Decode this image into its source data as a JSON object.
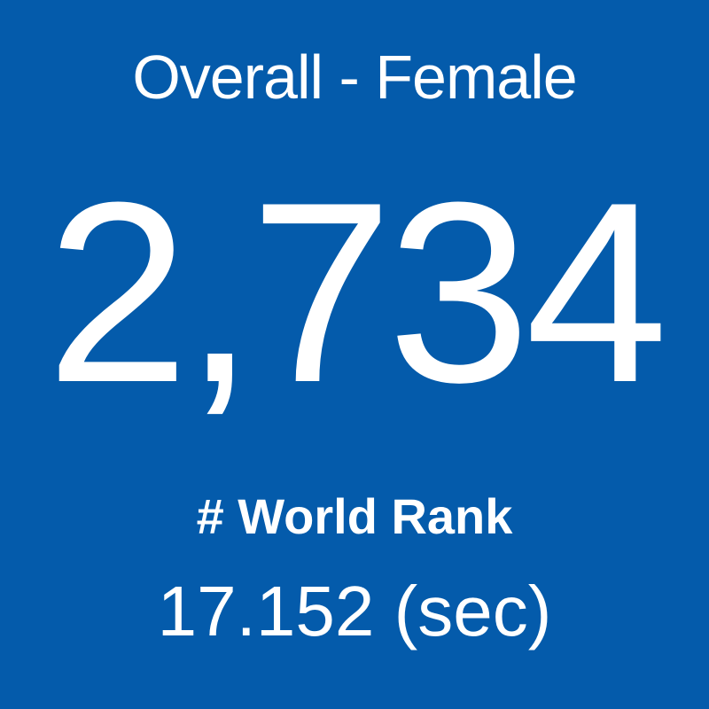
{
  "tile": {
    "title": "Overall - Female",
    "value": "2,734",
    "label": "# World Rank",
    "time": "17.152 (sec)"
  }
}
